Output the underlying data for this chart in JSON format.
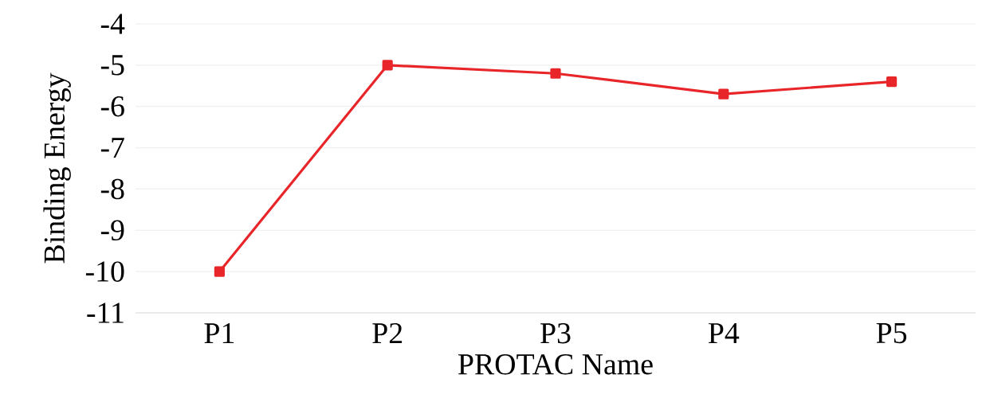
{
  "chart_data": {
    "type": "line",
    "xlabel": "PROTAC Name",
    "ylabel": "Binding Energy",
    "categories": [
      "P1",
      "P2",
      "P3",
      "P4",
      "P5"
    ],
    "series": [
      {
        "color": "#e8262a",
        "values": [
          -10,
          -5.0,
          -5.2,
          -5.7,
          -5.4
        ]
      }
    ],
    "ylim": [
      -11,
      -4
    ],
    "yticks": [
      -11,
      -10,
      -9,
      -8,
      -7,
      -6,
      -5,
      -4
    ],
    "grid": "y",
    "marker": "square",
    "line_style": "solid"
  }
}
